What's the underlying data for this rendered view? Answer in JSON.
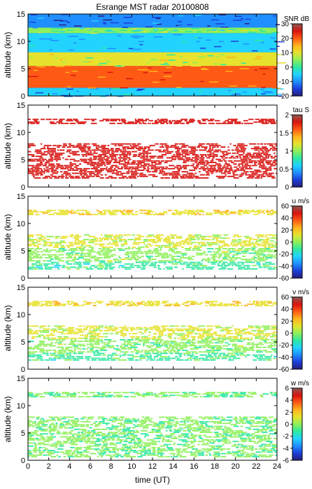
{
  "title": "Esrange MST radar 20100808",
  "xlabel": "time (UT)",
  "chart_data": [
    {
      "type": "heatmap",
      "panel": 1,
      "title": "Esrange MST radar 20100808",
      "ylabel": "altitude (km)",
      "xlim": [
        0,
        24
      ],
      "ylim": [
        0,
        15
      ],
      "x_ticks": [
        "0",
        "2",
        "4",
        "6",
        "8",
        "10",
        "12",
        "14",
        "16",
        "18",
        "20",
        "22",
        "24"
      ],
      "y_ticks": [
        "0",
        "5",
        "10",
        "15"
      ],
      "colorbar": {
        "label": "SNR dB",
        "range": [
          -20,
          30
        ],
        "ticks": [
          "30",
          "20",
          "10",
          "0",
          "-10",
          "-20"
        ]
      },
      "layers": [
        {
          "altitude_km": [
            0,
            1.5
          ],
          "value": -5,
          "desc": "near-ground band"
        },
        {
          "altitude_km": [
            1.5,
            5.5
          ],
          "value": 22,
          "desc": "strong lower troposphere echoes"
        },
        {
          "altitude_km": [
            5.5,
            8
          ],
          "value": 10,
          "desc": "mid troposphere"
        },
        {
          "altitude_km": [
            8,
            11.5
          ],
          "value": -5,
          "desc": "upper troposphere"
        },
        {
          "altitude_km": [
            11.5,
            12.5
          ],
          "value": 5,
          "desc": "tropopause layer"
        },
        {
          "altitude_km": [
            12.5,
            15
          ],
          "value": -10,
          "desc": "lower stratosphere"
        }
      ]
    },
    {
      "type": "heatmap",
      "panel": 2,
      "ylabel": "altitude (km)",
      "xlim": [
        0,
        24
      ],
      "ylim": [
        0,
        15
      ],
      "x_ticks": [
        "0",
        "2",
        "4",
        "6",
        "8",
        "10",
        "12",
        "14",
        "16",
        "18",
        "20",
        "22",
        "24"
      ],
      "y_ticks": [
        "0",
        "5",
        "10",
        "15"
      ],
      "colorbar": {
        "label": "tau S",
        "range": [
          0,
          2
        ],
        "ticks": [
          "2",
          "1.5",
          "1",
          "0.5",
          "0"
        ]
      },
      "layers": [
        {
          "altitude_km": [
            1.5,
            8
          ],
          "value": 2.0
        },
        {
          "altitude_km": [
            11.5,
            12.5
          ],
          "value": 2.0
        }
      ]
    },
    {
      "type": "heatmap",
      "panel": 3,
      "ylabel": "altitude (km)",
      "xlim": [
        0,
        24
      ],
      "ylim": [
        0,
        15
      ],
      "x_ticks": [
        "0",
        "2",
        "4",
        "6",
        "8",
        "10",
        "12",
        "14",
        "16",
        "18",
        "20",
        "22",
        "24"
      ],
      "y_ticks": [
        "0",
        "5",
        "10",
        "15"
      ],
      "colorbar": {
        "label": "u m/s",
        "range": [
          -60,
          60
        ],
        "ticks": [
          "60",
          "40",
          "20",
          "0",
          "-20",
          "-40",
          "-60"
        ]
      },
      "layers": [
        {
          "altitude_km": [
            1.5,
            3
          ],
          "value": -5
        },
        {
          "altitude_km": [
            3,
            5.5
          ],
          "value": 5
        },
        {
          "altitude_km": [
            5.5,
            8
          ],
          "value": 15
        },
        {
          "altitude_km": [
            11.5,
            12.5
          ],
          "value": 20
        }
      ]
    },
    {
      "type": "heatmap",
      "panel": 4,
      "ylabel": "altitude (km)",
      "xlim": [
        0,
        24
      ],
      "ylim": [
        0,
        15
      ],
      "x_ticks": [
        "0",
        "2",
        "4",
        "6",
        "8",
        "10",
        "12",
        "14",
        "16",
        "18",
        "20",
        "22",
        "24"
      ],
      "y_ticks": [
        "0",
        "5",
        "10",
        "15"
      ],
      "colorbar": {
        "label": "v m/s",
        "range": [
          -60,
          60
        ],
        "ticks": [
          "60",
          "40",
          "20",
          "0",
          "-20",
          "-40",
          "-60"
        ]
      },
      "layers": [
        {
          "altitude_km": [
            1.5,
            3
          ],
          "value": -5
        },
        {
          "altitude_km": [
            3,
            5.5
          ],
          "value": 5
        },
        {
          "altitude_km": [
            5.5,
            8
          ],
          "value": 15
        },
        {
          "altitude_km": [
            11.5,
            12.5
          ],
          "value": 20
        }
      ]
    },
    {
      "type": "heatmap",
      "panel": 5,
      "ylabel": "altitude (km)",
      "xlim": [
        0,
        24
      ],
      "ylim": [
        0,
        15
      ],
      "x_ticks": [
        "0",
        "2",
        "4",
        "6",
        "8",
        "10",
        "12",
        "14",
        "16",
        "18",
        "20",
        "22",
        "24"
      ],
      "y_ticks": [
        "0",
        "5",
        "10",
        "15"
      ],
      "colorbar": {
        "label": "w m/s",
        "range": [
          -6,
          6
        ],
        "ticks": [
          "6",
          "4",
          "2",
          "0",
          "-2",
          "-4",
          "-6"
        ]
      },
      "layers": [
        {
          "altitude_km": [
            0.5,
            8
          ],
          "value": 0.3
        },
        {
          "altitude_km": [
            11.5,
            12.5
          ],
          "value": 0.3
        }
      ]
    }
  ],
  "colors": {
    "colormap": [
      "#241f7a",
      "#1c3fd8",
      "#1f8fff",
      "#22d3ff",
      "#2fe8a0",
      "#8ef05a",
      "#e6e22e",
      "#ffb21d",
      "#ff5a15",
      "#d81410",
      "#8a5a52"
    ]
  }
}
